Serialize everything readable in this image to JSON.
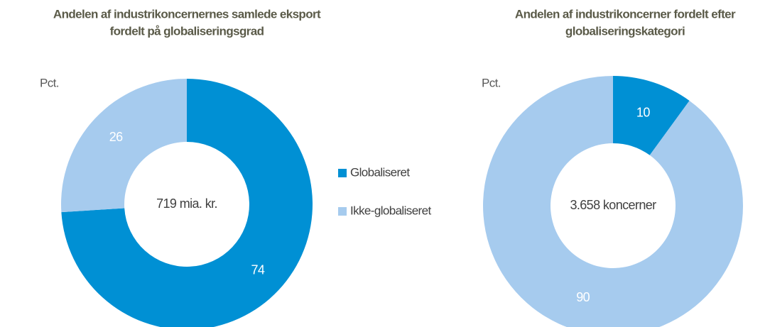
{
  "chart_data": [
    {
      "type": "donut",
      "title": [
        "Andelen af industrikoncernernes samlede eksport",
        "fordelt på globaliseringsgrad"
      ],
      "unit": "Pct.",
      "center_label": "719 mia. kr.",
      "categories": [
        "Globaliseret",
        "Ikke-globaliseret"
      ],
      "values": [
        74,
        26
      ],
      "colors": [
        "#0090d4",
        "#a6cbee"
      ]
    },
    {
      "type": "donut",
      "title": [
        "Andelen af industrikoncerner fordelt efter",
        "globaliseringskategori"
      ],
      "unit": "Pct.",
      "center_label": "3.658 koncerner",
      "categories": [
        "Globaliseret",
        "Ikke-globaliseret"
      ],
      "values": [
        10,
        90
      ],
      "colors": [
        "#0090d4",
        "#a6cbee"
      ]
    }
  ]
}
